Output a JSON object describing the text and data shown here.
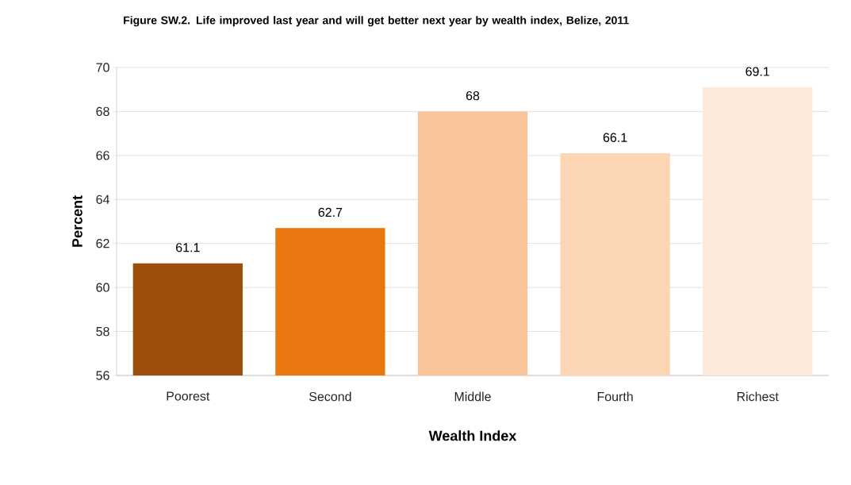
{
  "chart_data": {
    "type": "bar",
    "title": "Figure SW.2. Life improved last year and will get better next year by wealth index, Belize, 2011",
    "xlabel": "Wealth Index",
    "ylabel": "Percent",
    "categories": [
      "Poorest",
      "Second",
      "Middle",
      "Fourth",
      "Richest"
    ],
    "values": [
      61.1,
      62.7,
      68,
      66.1,
      69.1
    ],
    "value_labels": [
      "61.1",
      "62.7",
      "68",
      "66.1",
      "69.1"
    ],
    "colors": [
      "#9c4f0b",
      "#e8770f",
      "#f9c49a",
      "#fcd5b5",
      "#fde9d9"
    ],
    "ylim": [
      56,
      70
    ],
    "yticks": [
      56,
      58,
      60,
      62,
      64,
      66,
      68,
      70
    ],
    "grid": "y"
  }
}
